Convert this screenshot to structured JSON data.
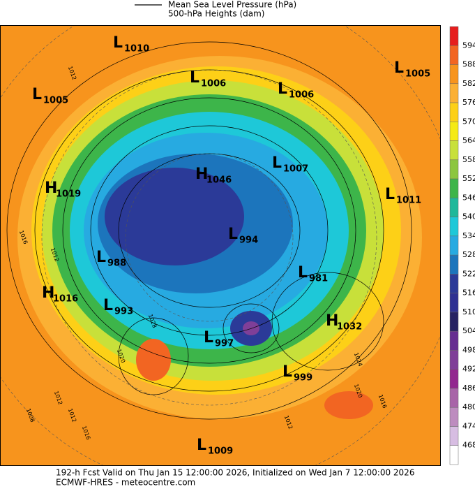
{
  "header": {
    "legend": [
      "Mean Sea Level Pressure (hPa)",
      "500-hPa Heights (dam)"
    ]
  },
  "colorbar": {
    "ticks": [
      594,
      588,
      582,
      576,
      570,
      564,
      558,
      552,
      546,
      540,
      534,
      528,
      522,
      516,
      510,
      504,
      498,
      492,
      486,
      480,
      474,
      468
    ],
    "colors": [
      "#e61e1e",
      "#f26522",
      "#f7941d",
      "#fbb034",
      "#fdd017",
      "#f5ea14",
      "#c8e03a",
      "#8cc63f",
      "#3db54a",
      "#1fb89a",
      "#1ec8d8",
      "#27aae1",
      "#1c75bc",
      "#2b3a98",
      "#2e3192",
      "#262262",
      "#662d91",
      "#7f3f98",
      "#92278f",
      "#a864a8",
      "#bd8cbf",
      "#d7bde2",
      "#ffffff"
    ]
  },
  "centers": [
    {
      "letter": "L",
      "value": 1010
    },
    {
      "letter": "L",
      "value": 1006
    },
    {
      "letter": "L",
      "value": 1006
    },
    {
      "letter": "L",
      "value": 1005
    },
    {
      "letter": "L",
      "value": 1005
    },
    {
      "letter": "L",
      "value": 1007
    },
    {
      "letter": "H",
      "value": 1046
    },
    {
      "letter": "L",
      "value": 1011
    },
    {
      "letter": "H",
      "value": 1019
    },
    {
      "letter": "L",
      "value": 994
    },
    {
      "letter": "L",
      "value": 988
    },
    {
      "letter": "L",
      "value": 981
    },
    {
      "letter": "H",
      "value": 1016
    },
    {
      "letter": "L",
      "value": 993
    },
    {
      "letter": "H",
      "value": 1032
    },
    {
      "letter": "L",
      "value": 997
    },
    {
      "letter": "L",
      "value": 999
    },
    {
      "letter": "L",
      "value": 1009
    }
  ],
  "isobar_labels": [
    1012,
    1016,
    1012,
    1012,
    1028,
    1020,
    1024,
    1016,
    1008,
    1012,
    1016,
    1020,
    1012
  ],
  "footer": [
    "192-h Fcst Valid on Thu Jan 15 12:00:00 2026, Initialized on Wed Jan  7 12:00:00 2026",
    "ECMWF-HRES  - meteocentre.com"
  ]
}
